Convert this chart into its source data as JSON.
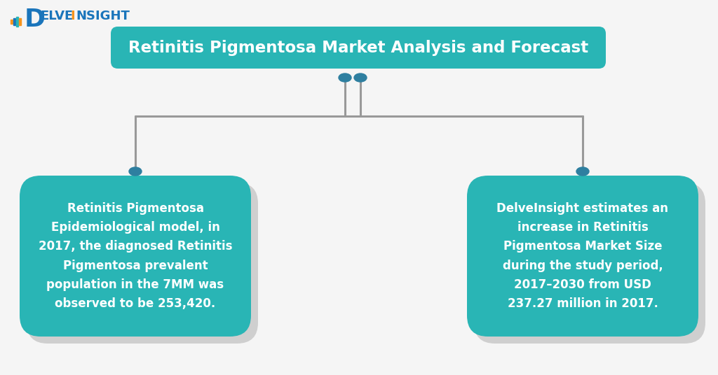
{
  "title": "Retinitis Pigmentosa Market Analysis and Forecast",
  "title_bg_color": "#29b5b5",
  "title_text_color": "#ffffff",
  "card_bg_color": "#29b5b5",
  "card_text_color": "#ffffff",
  "shadow_color": "#aaaaaa",
  "line_color": "#999999",
  "dot_color": "#2e7fa0",
  "background_color": "#f5f5f5",
  "card1_text": "Retinitis Pigmentosa\nEpidemiological model, in\n2017, the diagnosed Retinitis\nPigmentosa prevalent\npopulation in the 7MM was\nobserved to be 253,420.",
  "card2_text": "DelveInsight estimates an\nincrease in Retinitis\nPigmentosa Market Size\nduring the study period,\n2017–2030 from USD\n237.27 million in 2017.",
  "logo_blue": "#1a75bb",
  "logo_orange": "#f7941d",
  "logo_teal": "#29b5b5"
}
